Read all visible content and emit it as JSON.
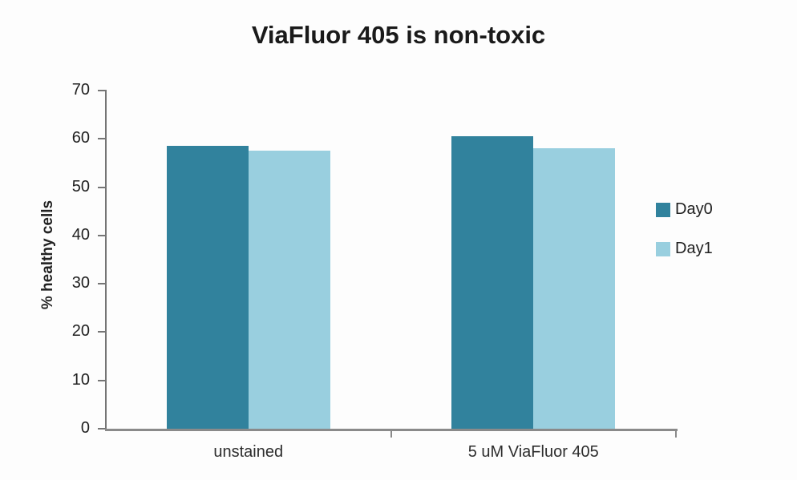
{
  "chart_data": {
    "type": "bar",
    "title": "ViaFluor 405 is non-toxic",
    "ylabel": "% healthy cells",
    "xlabel": "",
    "categories": [
      "unstained",
      "5 uM ViaFluor 405"
    ],
    "series": [
      {
        "name": "Day0",
        "color": "#31829d",
        "values": [
          58.5,
          60.5
        ]
      },
      {
        "name": "Day1",
        "color": "#99cfdf",
        "values": [
          57.5,
          58
        ]
      }
    ],
    "ylim": [
      0,
      70
    ],
    "yticks": [
      0,
      10,
      20,
      30,
      40,
      50,
      60,
      70
    ],
    "grid": false,
    "legend_position": "right"
  },
  "colors": {
    "background": "#fdfdfd",
    "axis": "#8a8a8a",
    "text": "#202020",
    "day0": "#31829d",
    "day1": "#99cfdf"
  }
}
